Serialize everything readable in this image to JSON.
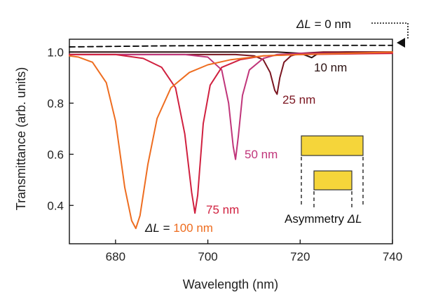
{
  "chart_data": {
    "type": "line",
    "title": "",
    "xlabel": "Wavelength (nm)",
    "ylabel": "Transmittance (arb. units)",
    "xlim": [
      670,
      740
    ],
    "ylim": [
      0.25,
      1.05
    ],
    "xticks": [
      680,
      700,
      720,
      740
    ],
    "yticks": [
      0.4,
      0.6,
      0.8,
      1.0
    ],
    "xtick_labels": [
      "680",
      "700",
      "720",
      "740"
    ],
    "ytick_labels": [
      "0.4",
      "0.6",
      "0.8",
      "1.0"
    ],
    "grid": false,
    "series": [
      {
        "name": "ΔL = 0 nm",
        "color": "#000000",
        "dashed": true,
        "x": [
          670,
          680,
          690,
          700,
          710,
          720,
          730,
          740
        ],
        "y": [
          1.02,
          1.022,
          1.024,
          1.025,
          1.026,
          1.026,
          1.026,
          1.026
        ]
      },
      {
        "name": "10 nm",
        "color": "#2a1010",
        "x": [
          670,
          680,
          690,
          700,
          710,
          715,
          720,
          721.5,
          722.5,
          723.5,
          725,
          730,
          740
        ],
        "y": [
          1.0,
          1.0,
          1.0,
          1.0,
          1.0,
          1.0,
          0.995,
          0.985,
          0.978,
          0.99,
          0.998,
          1.0,
          1.0
        ]
      },
      {
        "name": "25 nm",
        "color": "#7a1520",
        "x": [
          670,
          680,
          690,
          700,
          706,
          710,
          712,
          713.5,
          714.5,
          715,
          715.6,
          716.5,
          718,
          720,
          725,
          740
        ],
        "y": [
          0.99,
          0.99,
          0.99,
          0.99,
          0.99,
          0.985,
          0.97,
          0.92,
          0.85,
          0.835,
          0.9,
          0.96,
          0.985,
          0.995,
          1.0,
          1.0
        ]
      },
      {
        "name": "50 nm",
        "color": "#c0357a",
        "x": [
          670,
          680,
          690,
          695,
          700,
          703,
          704.5,
          705.5,
          706,
          706.6,
          707.5,
          709,
          712,
          715,
          720,
          740
        ],
        "y": [
          0.99,
          0.99,
          0.99,
          0.99,
          0.98,
          0.93,
          0.8,
          0.63,
          0.58,
          0.67,
          0.83,
          0.93,
          0.975,
          0.99,
          0.995,
          0.995
        ]
      },
      {
        "name": "75 nm",
        "color": "#d0203f",
        "x": [
          670,
          680,
          686,
          690,
          693,
          695,
          696.5,
          697.2,
          697.8,
          699,
          700.5,
          703,
          707,
          712,
          720,
          740
        ],
        "y": [
          0.99,
          0.99,
          0.975,
          0.94,
          0.86,
          0.68,
          0.45,
          0.37,
          0.44,
          0.72,
          0.87,
          0.94,
          0.97,
          0.985,
          0.99,
          0.995
        ]
      },
      {
        "name": "100 nm",
        "color": "#ee6d20",
        "x": [
          670,
          672,
          675,
          678,
          680,
          682,
          683.5,
          684.4,
          685.3,
          687,
          689,
          692,
          696,
          700,
          705,
          712,
          720,
          730,
          740
        ],
        "y": [
          0.985,
          0.98,
          0.96,
          0.88,
          0.73,
          0.47,
          0.34,
          0.31,
          0.36,
          0.56,
          0.74,
          0.86,
          0.92,
          0.95,
          0.97,
          0.985,
          0.99,
          0.995,
          1.0
        ]
      }
    ],
    "annotations": [
      {
        "id": "dl0",
        "prefix": "ΔL",
        "text": " = 0 nm",
        "color": "#111111"
      },
      {
        "id": "l10",
        "text": "10 nm",
        "color": "#2a1010"
      },
      {
        "id": "l25",
        "text": "25 nm",
        "color": "#7a1520"
      },
      {
        "id": "l50",
        "text": "50 nm",
        "color": "#c0357a"
      },
      {
        "id": "l75",
        "text": "75 nm",
        "color": "#d0203f"
      },
      {
        "id": "l100a",
        "prefix": "ΔL",
        "text": " = ",
        "color": "#111111"
      },
      {
        "id": "l100b",
        "text": "100 nm",
        "color": "#ee6d20"
      },
      {
        "id": "inset",
        "text": "Asymmetry ",
        "suffix": "ΔL",
        "color": "#111111"
      }
    ],
    "inset_color": "#f5d53a"
  }
}
